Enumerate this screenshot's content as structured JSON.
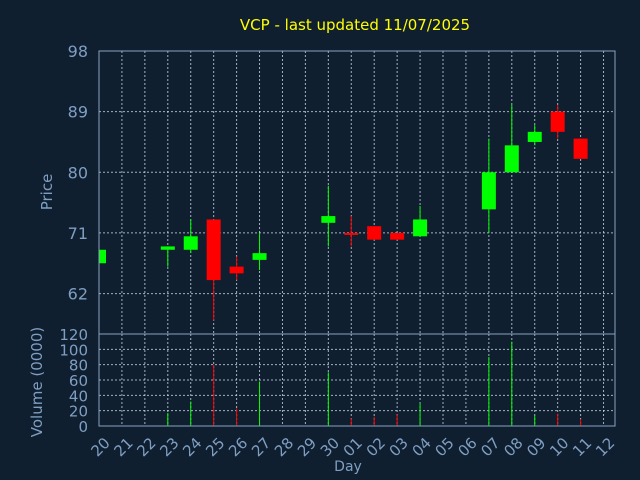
{
  "title": "VCP - last updated 11/07/2025",
  "colors": {
    "background": "#0f1f30",
    "frame": "#8aa2bf",
    "grid": "#c8d6e6",
    "title": "#ffff00",
    "axis_text": "#7f9fc2",
    "up": "#00ff00",
    "down": "#ff0000"
  },
  "chart_data": {
    "type": "candlestick",
    "price_axis": {
      "label": "Price",
      "range": [
        56,
        98
      ],
      "ticks": [
        62,
        71,
        80,
        89,
        98
      ]
    },
    "volume_axis": {
      "label": "Volume (0000)",
      "range": [
        0,
        120
      ],
      "ticks": [
        0,
        20,
        40,
        60,
        80,
        100,
        120
      ]
    },
    "x_axis": {
      "label": "Day",
      "ticks": [
        "20",
        "21",
        "22",
        "23",
        "24",
        "25",
        "26",
        "27",
        "28",
        "29",
        "30",
        "01",
        "02",
        "03",
        "04",
        "05",
        "06",
        "07",
        "08",
        "09",
        "10",
        "11",
        "12"
      ]
    },
    "grid": true,
    "candles": [
      {
        "day": "20",
        "open": 66.5,
        "high": 68.5,
        "low": 66.0,
        "close": 68.5,
        "volume": 0
      },
      {
        "day": "23",
        "open": 68.5,
        "high": 69.0,
        "low": 66.0,
        "close": 69.0,
        "volume": 17
      },
      {
        "day": "24",
        "open": 68.5,
        "high": 73.0,
        "low": 68.0,
        "close": 70.5,
        "volume": 32
      },
      {
        "day": "25",
        "open": 73.0,
        "high": 73.0,
        "low": 58.0,
        "close": 64.0,
        "volume": 80
      },
      {
        "day": "26",
        "open": 66.0,
        "high": 67.5,
        "low": 64.0,
        "close": 65.0,
        "volume": 23
      },
      {
        "day": "27",
        "open": 67.0,
        "high": 71.0,
        "low": 65.5,
        "close": 68.0,
        "volume": 58
      },
      {
        "day": "30",
        "open": 72.5,
        "high": 78.0,
        "low": 69.0,
        "close": 73.5,
        "volume": 70
      },
      {
        "day": "01",
        "open": 71.0,
        "high": 73.5,
        "low": 69.0,
        "close": 70.8,
        "volume": 10
      },
      {
        "day": "02",
        "open": 72.0,
        "high": 72.0,
        "low": 70.0,
        "close": 70.0,
        "volume": 12
      },
      {
        "day": "03",
        "open": 71.0,
        "high": 71.0,
        "low": 70.0,
        "close": 70.0,
        "volume": 15
      },
      {
        "day": "04",
        "open": 70.5,
        "high": 75.0,
        "low": 70.5,
        "close": 73.0,
        "volume": 30
      },
      {
        "day": "07",
        "open": 74.5,
        "high": 85.0,
        "low": 71.0,
        "close": 80.0,
        "volume": 90
      },
      {
        "day": "08",
        "open": 80.0,
        "high": 90.0,
        "low": 80.0,
        "close": 84.0,
        "volume": 110
      },
      {
        "day": "09",
        "open": 84.5,
        "high": 87.0,
        "low": 84.0,
        "close": 86.0,
        "volume": 14
      },
      {
        "day": "10",
        "open": 89.0,
        "high": 90.0,
        "low": 85.0,
        "close": 86.0,
        "volume": 16
      },
      {
        "day": "11",
        "open": 85.0,
        "high": 85.0,
        "low": 82.0,
        "close": 82.0,
        "volume": 9
      }
    ]
  }
}
